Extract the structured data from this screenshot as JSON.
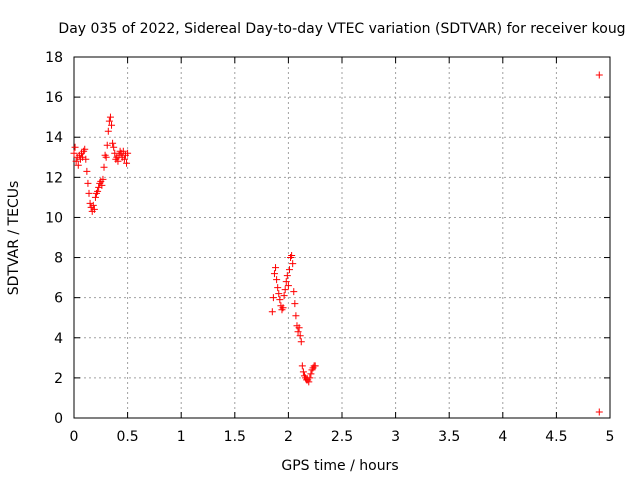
{
  "chart_data": {
    "type": "scatter",
    "title": "Day 035 of 2022, Sidereal Day-to-day VTEC variation (SDTVAR) for receiver koug",
    "xlabel": "GPS time / hours",
    "ylabel": "SDTVAR / TECUs",
    "xlim": [
      0,
      5
    ],
    "ylim": [
      0,
      18
    ],
    "xticks": [
      0,
      0.5,
      1,
      1.5,
      2,
      2.5,
      3,
      3.5,
      4,
      4.5,
      5
    ],
    "xtick_labels": [
      "0",
      "0.5",
      "1",
      "1.5",
      "2",
      "2.5",
      "3",
      "3.5",
      "4",
      "4.5",
      "5"
    ],
    "yticks": [
      0,
      2,
      4,
      6,
      8,
      10,
      12,
      14,
      16,
      18
    ],
    "ytick_labels": [
      "0",
      "2",
      "4",
      "6",
      "8",
      "10",
      "12",
      "14",
      "16",
      "18"
    ],
    "grid": true,
    "marker": "plus",
    "colors": {
      "marker": "#ff0000",
      "grid": "#a0a0a0",
      "axis": "#000000"
    },
    "series": [
      {
        "name": "SDTVAR",
        "points": [
          [
            0.0,
            13.2
          ],
          [
            0.01,
            13.5
          ],
          [
            0.02,
            12.8
          ],
          [
            0.03,
            13.0
          ],
          [
            0.04,
            12.6
          ],
          [
            0.05,
            13.1
          ],
          [
            0.06,
            12.9
          ],
          [
            0.07,
            13.2
          ],
          [
            0.08,
            13.0
          ],
          [
            0.09,
            13.3
          ],
          [
            0.1,
            13.4
          ],
          [
            0.11,
            12.9
          ],
          [
            0.12,
            12.3
          ],
          [
            0.13,
            11.7
          ],
          [
            0.14,
            11.2
          ],
          [
            0.15,
            10.7
          ],
          [
            0.16,
            10.5
          ],
          [
            0.17,
            10.3
          ],
          [
            0.18,
            10.6
          ],
          [
            0.19,
            10.4
          ],
          [
            0.2,
            11.0
          ],
          [
            0.21,
            11.2
          ],
          [
            0.22,
            11.3
          ],
          [
            0.23,
            11.5
          ],
          [
            0.24,
            11.7
          ],
          [
            0.25,
            11.8
          ],
          [
            0.26,
            11.6
          ],
          [
            0.27,
            11.9
          ],
          [
            0.28,
            12.5
          ],
          [
            0.29,
            13.1
          ],
          [
            0.3,
            13.0
          ],
          [
            0.31,
            13.6
          ],
          [
            0.32,
            14.3
          ],
          [
            0.33,
            14.8
          ],
          [
            0.34,
            15.0
          ],
          [
            0.35,
            14.6
          ],
          [
            0.36,
            13.7
          ],
          [
            0.37,
            13.5
          ],
          [
            0.38,
            13.2
          ],
          [
            0.39,
            12.9
          ],
          [
            0.4,
            13.0
          ],
          [
            0.41,
            12.8
          ],
          [
            0.42,
            13.1
          ],
          [
            0.43,
            13.3
          ],
          [
            0.44,
            13.2
          ],
          [
            0.45,
            13.0
          ],
          [
            0.46,
            13.3
          ],
          [
            0.47,
            12.9
          ],
          [
            0.48,
            13.1
          ],
          [
            0.49,
            12.7
          ],
          [
            0.5,
            13.2
          ],
          [
            1.85,
            5.3
          ],
          [
            1.86,
            6.0
          ],
          [
            1.87,
            7.2
          ],
          [
            1.88,
            7.5
          ],
          [
            1.89,
            6.9
          ],
          [
            1.9,
            6.5
          ],
          [
            1.91,
            6.2
          ],
          [
            1.92,
            5.9
          ],
          [
            1.93,
            5.6
          ],
          [
            1.94,
            5.4
          ],
          [
            1.95,
            5.5
          ],
          [
            1.96,
            6.1
          ],
          [
            1.97,
            6.4
          ],
          [
            1.98,
            6.8
          ],
          [
            1.99,
            7.1
          ],
          [
            2.0,
            6.6
          ],
          [
            2.01,
            7.4
          ],
          [
            2.02,
            8.0
          ],
          [
            2.03,
            8.1
          ],
          [
            2.04,
            7.7
          ],
          [
            2.05,
            6.3
          ],
          [
            2.06,
            5.7
          ],
          [
            2.07,
            5.1
          ],
          [
            2.08,
            4.6
          ],
          [
            2.09,
            4.3
          ],
          [
            2.1,
            4.5
          ],
          [
            2.11,
            4.1
          ],
          [
            2.12,
            3.8
          ],
          [
            2.13,
            2.6
          ],
          [
            2.14,
            2.3
          ],
          [
            2.15,
            2.1
          ],
          [
            2.16,
            2.0
          ],
          [
            2.17,
            1.9
          ],
          [
            2.18,
            1.9
          ],
          [
            2.19,
            1.8
          ],
          [
            2.2,
            2.0
          ],
          [
            2.21,
            2.2
          ],
          [
            2.22,
            2.4
          ],
          [
            2.23,
            2.5
          ],
          [
            2.24,
            2.6
          ],
          [
            2.25,
            2.6
          ],
          [
            4.9,
            17.1
          ],
          [
            4.9,
            0.3
          ]
        ]
      }
    ]
  }
}
